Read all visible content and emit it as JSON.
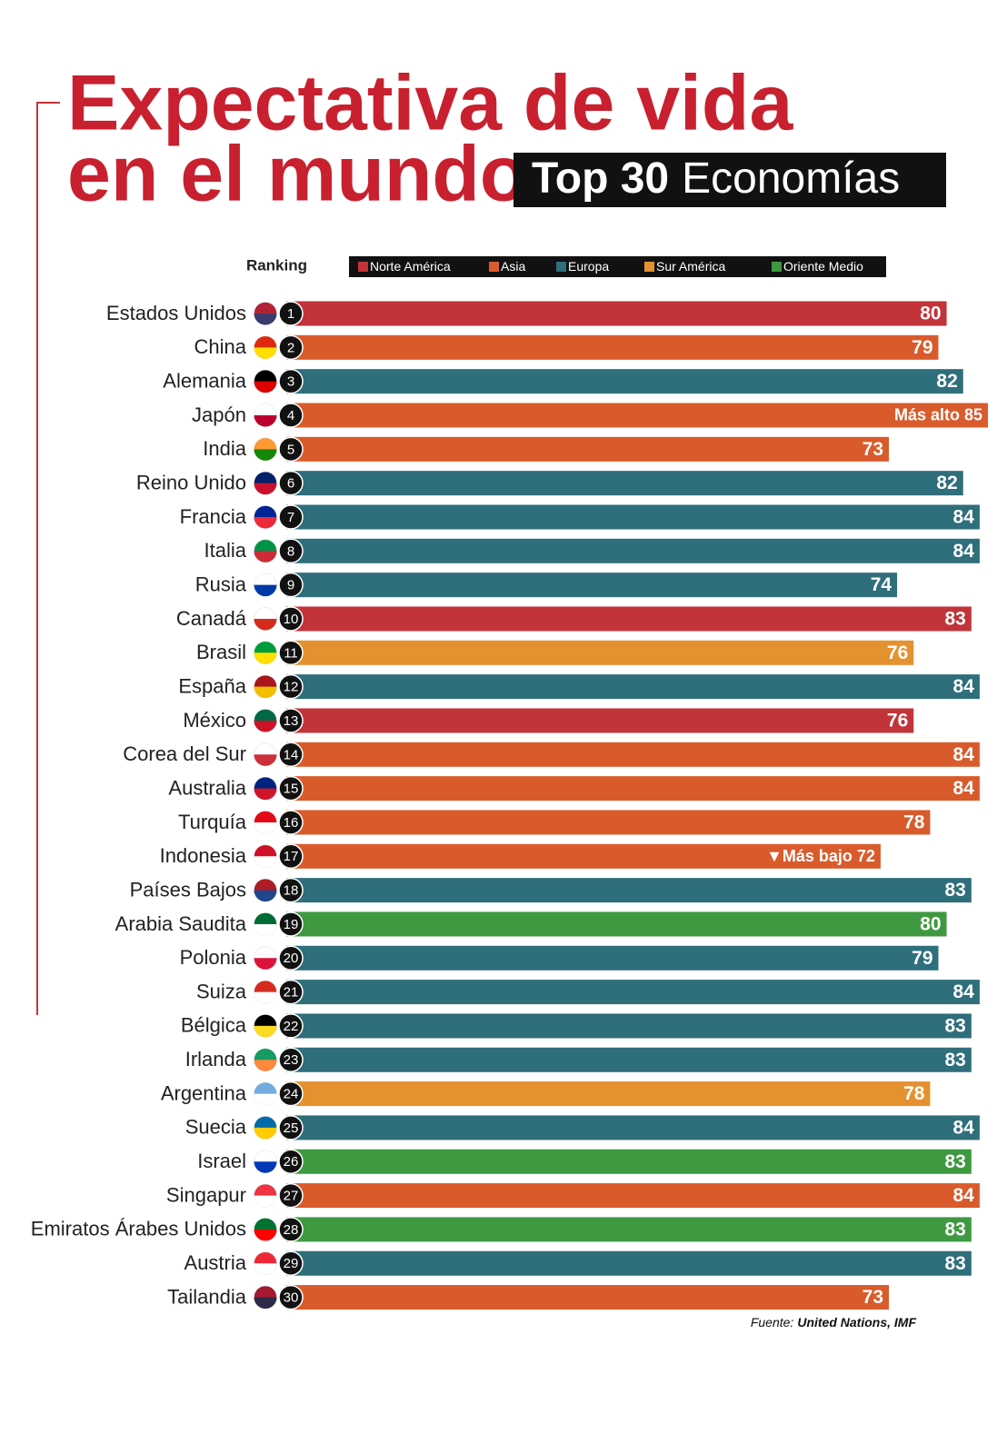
{
  "chart_data": {
    "type": "bar",
    "orientation": "horizontal",
    "title_lines": [
      "Expectativa de vida",
      "en el mundo"
    ],
    "subtitle_bold": "Top 30",
    "subtitle_light": "Economías",
    "rank_label": "Ranking",
    "legend": [
      {
        "name": "Norte América",
        "color": "#c2333a"
      },
      {
        "name": "Asia",
        "color": "#d95b2c"
      },
      {
        "name": "Europa",
        "color": "#2f6e7b"
      },
      {
        "name": "Sur América",
        "color": "#e4912f"
      },
      {
        "name": "Oriente Medio",
        "color": "#3e9941"
      }
    ],
    "categories": [
      "Estados Unidos",
      "China",
      "Alemania",
      "Japón",
      "India",
      "Reino Unido",
      "Francia",
      "Italia",
      "Rusia",
      "Canadá",
      "Brasil",
      "España",
      "México",
      "Corea del Sur",
      "Australia",
      "Turquía",
      "Indonesia",
      "Países Bajos",
      "Arabia Saudita",
      "Polonia",
      "Suiza",
      "Bélgica",
      "Irlanda",
      "Argentina",
      "Suecia",
      "Israel",
      "Singapur",
      "Emiratos Árabes Unidos",
      "Austria",
      "Tailandia"
    ],
    "ranks": [
      1,
      2,
      3,
      4,
      5,
      6,
      7,
      8,
      9,
      10,
      11,
      12,
      13,
      14,
      15,
      16,
      17,
      18,
      19,
      20,
      21,
      22,
      23,
      24,
      25,
      26,
      27,
      28,
      29,
      30
    ],
    "values": [
      80,
      79,
      82,
      85,
      73,
      82,
      84,
      84,
      74,
      83,
      76,
      84,
      76,
      84,
      84,
      78,
      72,
      83,
      80,
      79,
      84,
      83,
      83,
      78,
      84,
      83,
      84,
      83,
      83,
      73
    ],
    "value_labels": [
      "80",
      "79",
      "82",
      "Más alto 85",
      "73",
      "82",
      "84",
      "84",
      "74",
      "83",
      "76",
      "84",
      "76",
      "84",
      "84",
      "78",
      "▼Más bajo 72",
      "83",
      "80",
      "79",
      "84",
      "83",
      "83",
      "78",
      "84",
      "83",
      "84",
      "83",
      "83",
      "73"
    ],
    "colors": [
      "#c2333a",
      "#d95b2c",
      "#2f6e7b",
      "#d95b2c",
      "#d95b2c",
      "#2f6e7b",
      "#2f6e7b",
      "#2f6e7b",
      "#2f6e7b",
      "#c2333a",
      "#e4912f",
      "#2f6e7b",
      "#c2333a",
      "#d95b2c",
      "#d95b2c",
      "#d95b2c",
      "#d95b2c",
      "#2f6e7b",
      "#3e9941",
      "#2f6e7b",
      "#2f6e7b",
      "#2f6e7b",
      "#2f6e7b",
      "#e4912f",
      "#2f6e7b",
      "#3e9941",
      "#d95b2c",
      "#3e9941",
      "#2f6e7b",
      "#d95b2c"
    ],
    "xlim": [
      0,
      85
    ],
    "source_label": "Fuente:",
    "source": "United Nations, IMF"
  }
}
